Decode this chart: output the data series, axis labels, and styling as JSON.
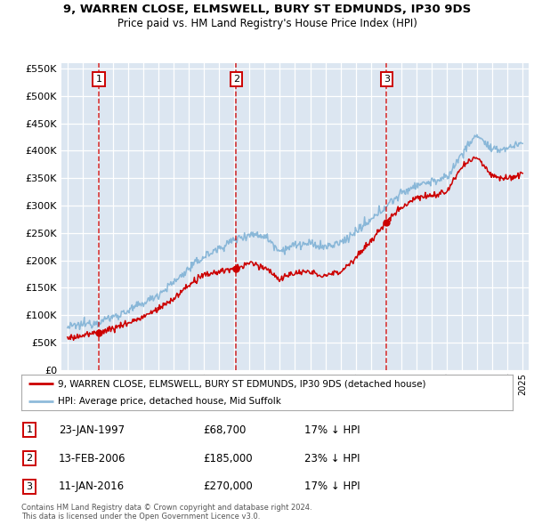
{
  "title": "9, WARREN CLOSE, ELMSWELL, BURY ST EDMUNDS, IP30 9DS",
  "subtitle": "Price paid vs. HM Land Registry's House Price Index (HPI)",
  "sales": [
    {
      "label": "1",
      "date_num": 1997.07,
      "price": 68700
    },
    {
      "label": "2",
      "date_num": 2006.12,
      "price": 185000
    },
    {
      "label": "3",
      "date_num": 2016.03,
      "price": 270000
    }
  ],
  "legend_entries": [
    "9, WARREN CLOSE, ELMSWELL, BURY ST EDMUNDS, IP30 9DS (detached house)",
    "HPI: Average price, detached house, Mid Suffolk"
  ],
  "footnote": "Contains HM Land Registry data © Crown copyright and database right 2024.\nThis data is licensed under the Open Government Licence v3.0.",
  "yticks": [
    0,
    50000,
    100000,
    150000,
    200000,
    250000,
    300000,
    350000,
    400000,
    450000,
    500000,
    550000
  ],
  "xlim_start": 1994.6,
  "xlim_end": 2025.4,
  "bg_color": "#dce6f1",
  "grid_color": "#ffffff",
  "red_line_color": "#cc0000",
  "blue_line_color": "#7bafd4",
  "vline_color": "#cc0000",
  "box_color": "#cc0000",
  "rows": [
    [
      "1",
      "23-JAN-1997",
      "£68,700",
      "17% ↓ HPI"
    ],
    [
      "2",
      "13-FEB-2006",
      "£185,000",
      "23% ↓ HPI"
    ],
    [
      "3",
      "11-JAN-2016",
      "£270,000",
      "17% ↓ HPI"
    ]
  ]
}
